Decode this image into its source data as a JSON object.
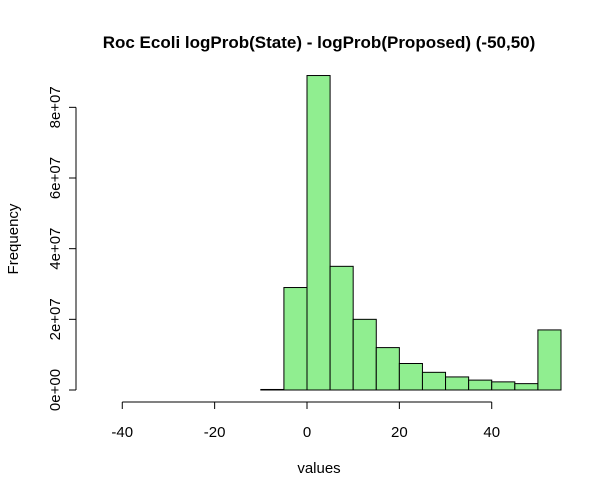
{
  "chart_data": {
    "type": "bar",
    "title": "Roc Ecoli logProb(State) - logProb(Proposed) (-50,50)",
    "xlabel": "values",
    "ylabel": "Frequency",
    "bar_color": "#90ee90",
    "edge_color": "#000000",
    "bin_edges": [
      -55,
      -50,
      -45,
      -40,
      -35,
      -30,
      -25,
      -20,
      -15,
      -10,
      -5,
      0,
      5,
      10,
      15,
      20,
      25,
      30,
      35,
      40,
      45,
      50,
      55
    ],
    "values": [
      0,
      0,
      0,
      0,
      0,
      0,
      0,
      0,
      0,
      150000,
      29000000,
      89000000,
      35000000,
      20000000,
      12000000,
      7500000,
      5000000,
      3700000,
      2800000,
      2300000,
      1800000,
      17000000
    ],
    "xlim": [
      -55,
      55
    ],
    "ylim": [
      0,
      90000000
    ],
    "x_ticks": [
      -40,
      -20,
      0,
      20,
      40
    ],
    "x_tick_labels": [
      "-40",
      "-20",
      "0",
      "20",
      "40"
    ],
    "y_ticks": [
      0,
      20000000,
      40000000,
      60000000,
      80000000
    ],
    "y_tick_labels": [
      "0e+00",
      "2e+07",
      "4e+07",
      "6e+07",
      "8e+07"
    ],
    "grid": false
  }
}
